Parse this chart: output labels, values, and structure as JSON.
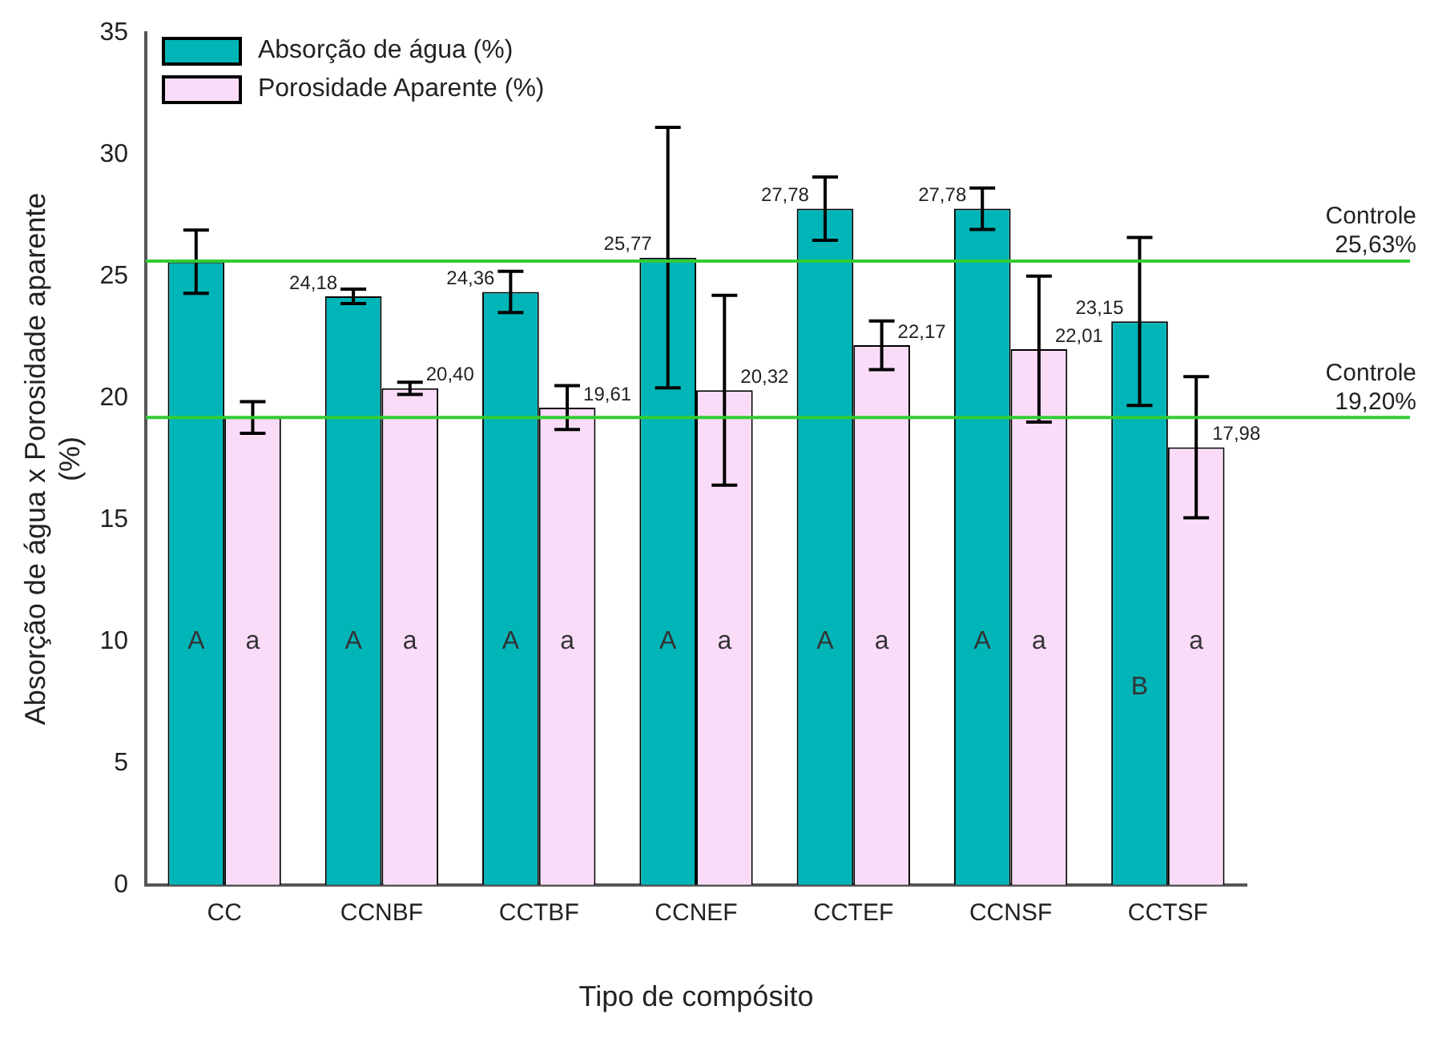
{
  "chart_data": {
    "type": "bar",
    "xlabel": "Tipo de compósito",
    "ylabel": "Absorção de água x Porosidade aparente\n(%)",
    "categories": [
      "CC",
      "CCNBF",
      "CCTBF",
      "CCNEF",
      "CCTEF",
      "CCNSF",
      "CCTSF"
    ],
    "series": [
      {
        "name": "Absorção de água  (%)",
        "color": "#00b5b8",
        "values": [
          25.6,
          24.18,
          24.36,
          25.77,
          27.78,
          27.78,
          23.15
        ],
        "errors": [
          1.3,
          0.3,
          0.85,
          5.35,
          1.3,
          0.85,
          3.45
        ],
        "value_labels": [
          null,
          "24,18",
          "24,36",
          "25,77",
          "27,78",
          "27,78",
          "23,15"
        ]
      },
      {
        "name": "Porosidade Aparente  (%)",
        "color": "#fadcf8",
        "values": [
          19.2,
          20.4,
          19.61,
          20.32,
          22.17,
          22.01,
          17.98
        ],
        "errors": [
          0.65,
          0.25,
          0.9,
          3.9,
          1.0,
          3.0,
          2.9
        ],
        "value_labels": [
          null,
          "20,40",
          "19,61",
          "20,32",
          "22,17",
          "22,01",
          "17,98"
        ]
      }
    ],
    "ylim": [
      0,
      35
    ],
    "yticks": [
      0,
      5,
      10,
      15,
      20,
      25,
      30,
      35
    ],
    "grid": false,
    "legend": "top left",
    "ref_lines": [
      {
        "axis": "y",
        "value": 25.63,
        "label": "Controle\n25,63%",
        "color": "#33cc33"
      },
      {
        "axis": "y",
        "value": 19.2,
        "label": "Controle\n19,20%",
        "color": "#33cc33"
      }
    ],
    "annotations": [
      {
        "text": "A",
        "x": "CC",
        "y": 10
      },
      {
        "text": "a",
        "x": "CC",
        "y": 10
      },
      {
        "text": "A",
        "x": "CCNBF",
        "y": 10
      },
      {
        "text": "a",
        "x": "CCNBF",
        "y": 10
      },
      {
        "text": "A",
        "x": "CCTBF",
        "y": 10
      },
      {
        "text": "a",
        "x": "CCTBF",
        "y": 10
      },
      {
        "text": "A",
        "x": "CCNEF",
        "y": 10
      },
      {
        "text": "a",
        "x": "CCNEF",
        "y": 10
      },
      {
        "text": "A",
        "x": "CCTEF",
        "y": 10
      },
      {
        "text": "a",
        "x": "CCTEF",
        "y": 10
      },
      {
        "text": "A",
        "x": "CCNSF",
        "y": 10
      },
      {
        "text": "a",
        "x": "CCNSF",
        "y": 10
      },
      {
        "text": "B",
        "x": "CCTSF",
        "y": 8.1
      },
      {
        "text": "a",
        "x": "CCTSF",
        "y": 10
      }
    ]
  }
}
